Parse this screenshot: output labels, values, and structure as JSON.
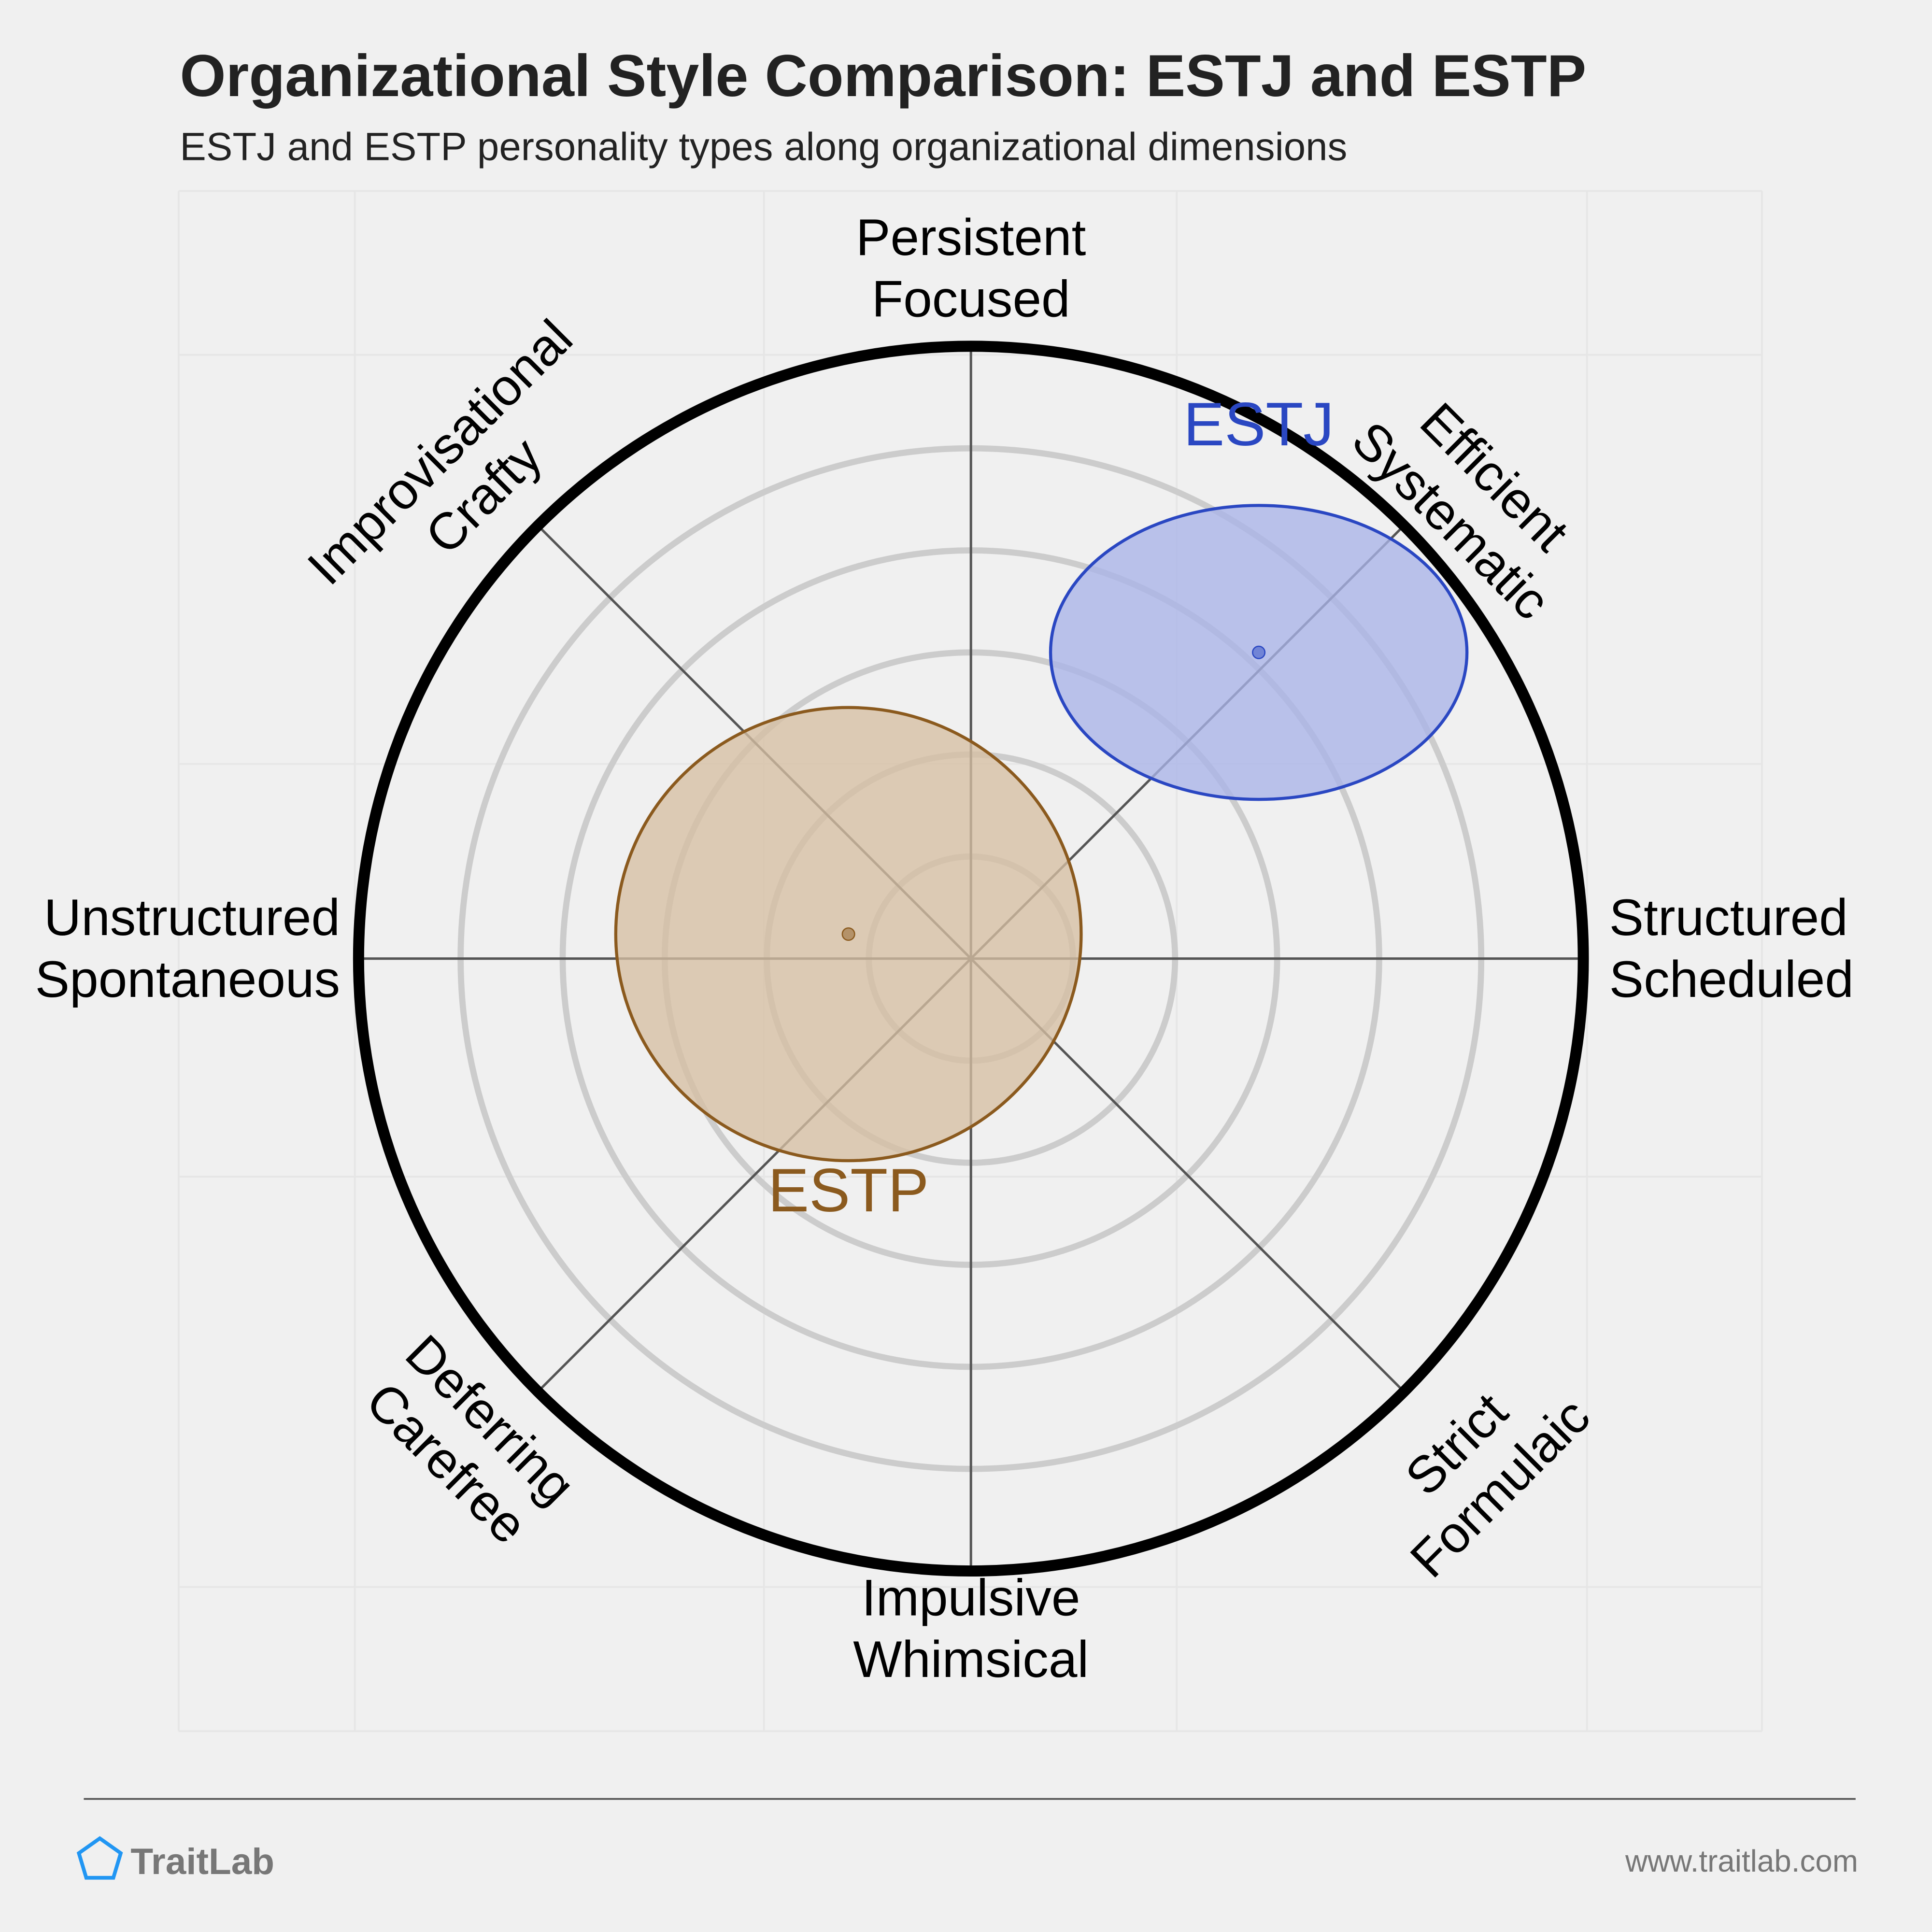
{
  "title": "Organizational Style Comparison: ESTJ and ESTP",
  "subtitle": "ESTJ and ESTP personality types along organizational dimensions",
  "footer": {
    "brand": "TraitLab",
    "url": "www.traitlab.com",
    "logo_icon": "pentagon-icon",
    "brand_color": "#2196F3"
  },
  "chart_data": {
    "type": "scatter",
    "subtype": "radial-map",
    "axes": [
      {
        "id": "north",
        "lines": [
          "Persistent",
          "Focused"
        ]
      },
      {
        "id": "northeast",
        "lines": [
          "Efficient",
          "Systematic"
        ]
      },
      {
        "id": "east",
        "lines": [
          "Structured",
          "Scheduled"
        ]
      },
      {
        "id": "southeast",
        "lines": [
          "Strict",
          "Formulaic"
        ]
      },
      {
        "id": "south",
        "lines": [
          "Impulsive",
          "Whimsical"
        ]
      },
      {
        "id": "southwest",
        "lines": [
          "Deferring",
          "Carefree"
        ]
      },
      {
        "id": "west",
        "lines": [
          "Unstructured",
          "Spontaneous"
        ]
      },
      {
        "id": "northwest",
        "lines": [
          "Improvisational",
          "Crafty"
        ]
      }
    ],
    "x_axis": {
      "negative": "Unstructured / Spontaneous",
      "positive": "Structured / Scheduled",
      "range": [
        -100,
        100
      ]
    },
    "y_axis": {
      "negative": "Impulsive / Whimsical",
      "positive": "Persistent / Focused",
      "range": [
        -100,
        100
      ]
    },
    "rings": 6,
    "grid": true,
    "series": [
      {
        "name": "ESTJ",
        "x": 47,
        "y": 50,
        "spread_x": 34,
        "spread_y": 24,
        "color": "#2a47c2",
        "fill": "#a9b4e8"
      },
      {
        "name": "ESTP",
        "x": -20,
        "y": 4,
        "spread_x": 38,
        "spread_y": 37,
        "color": "#8b5a1e",
        "fill": "#d6bfa3"
      }
    ]
  }
}
